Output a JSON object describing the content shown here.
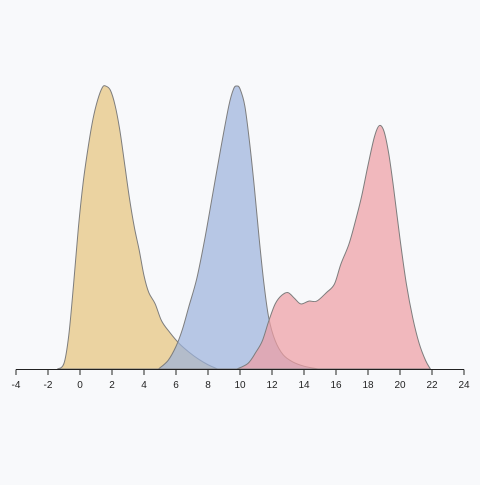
{
  "chart_data": {
    "type": "area",
    "title": "",
    "xlabel": "",
    "ylabel": "",
    "xlim": [
      -4,
      24
    ],
    "ylim": [
      0,
      1
    ],
    "grid": false,
    "x_axis_ticks": [
      "-4",
      "-2",
      "0",
      "2",
      "4",
      "6",
      "8",
      "10",
      "12",
      "14",
      "16",
      "18",
      "20",
      "22",
      "24"
    ],
    "y_axis_visible": false,
    "series": [
      {
        "color": "#e5c37a",
        "points": [
          [
            -1.4,
            0
          ],
          [
            -1.0,
            0.02
          ],
          [
            -0.7,
            0.12
          ],
          [
            -0.4,
            0.3
          ],
          [
            -0.1,
            0.5
          ],
          [
            0.2,
            0.66
          ],
          [
            0.5,
            0.78
          ],
          [
            0.8,
            0.88
          ],
          [
            1.1,
            0.95
          ],
          [
            1.4,
            0.995
          ],
          [
            1.6,
            1.0
          ],
          [
            1.9,
            0.985
          ],
          [
            2.2,
            0.93
          ],
          [
            2.5,
            0.84
          ],
          [
            2.8,
            0.72
          ],
          [
            3.1,
            0.6
          ],
          [
            3.4,
            0.5
          ],
          [
            3.7,
            0.42
          ],
          [
            4.0,
            0.33
          ],
          [
            4.3,
            0.27
          ],
          [
            4.7,
            0.23
          ],
          [
            5.1,
            0.17
          ],
          [
            5.6,
            0.13
          ],
          [
            6.2,
            0.09
          ],
          [
            6.8,
            0.06
          ],
          [
            7.4,
            0.035
          ],
          [
            8.0,
            0.015
          ],
          [
            8.6,
            0
          ]
        ]
      },
      {
        "color": "#9bb2dc",
        "points": [
          [
            4.9,
            0
          ],
          [
            5.5,
            0.03
          ],
          [
            6.0,
            0.08
          ],
          [
            6.4,
            0.14
          ],
          [
            6.8,
            0.22
          ],
          [
            7.3,
            0.32
          ],
          [
            7.8,
            0.46
          ],
          [
            8.3,
            0.62
          ],
          [
            8.8,
            0.78
          ],
          [
            9.3,
            0.93
          ],
          [
            9.6,
            0.99
          ],
          [
            9.8,
            1.0
          ],
          [
            10.0,
            0.99
          ],
          [
            10.3,
            0.93
          ],
          [
            10.6,
            0.8
          ],
          [
            10.9,
            0.64
          ],
          [
            11.2,
            0.46
          ],
          [
            11.5,
            0.3
          ],
          [
            11.8,
            0.18
          ],
          [
            12.2,
            0.1
          ],
          [
            12.7,
            0.05
          ],
          [
            13.3,
            0.025
          ],
          [
            14.0,
            0.01
          ],
          [
            14.9,
            0
          ]
        ]
      },
      {
        "color": "#ee9ca3",
        "points": [
          [
            9.8,
            0
          ],
          [
            10.5,
            0.02
          ],
          [
            11.0,
            0.06
          ],
          [
            11.4,
            0.1
          ],
          [
            11.8,
            0.17
          ],
          [
            12.2,
            0.23
          ],
          [
            12.6,
            0.26
          ],
          [
            13.0,
            0.27
          ],
          [
            13.4,
            0.25
          ],
          [
            13.8,
            0.23
          ],
          [
            14.3,
            0.24
          ],
          [
            14.8,
            0.24
          ],
          [
            15.4,
            0.27
          ],
          [
            15.9,
            0.3
          ],
          [
            16.3,
            0.37
          ],
          [
            16.8,
            0.44
          ],
          [
            17.2,
            0.52
          ],
          [
            17.6,
            0.61
          ],
          [
            18.0,
            0.72
          ],
          [
            18.4,
            0.82
          ],
          [
            18.7,
            0.86
          ],
          [
            19.0,
            0.84
          ],
          [
            19.3,
            0.76
          ],
          [
            19.6,
            0.64
          ],
          [
            20.0,
            0.46
          ],
          [
            20.4,
            0.3
          ],
          [
            20.8,
            0.18
          ],
          [
            21.2,
            0.09
          ],
          [
            21.6,
            0.03
          ],
          [
            21.9,
            0
          ]
        ]
      }
    ]
  }
}
